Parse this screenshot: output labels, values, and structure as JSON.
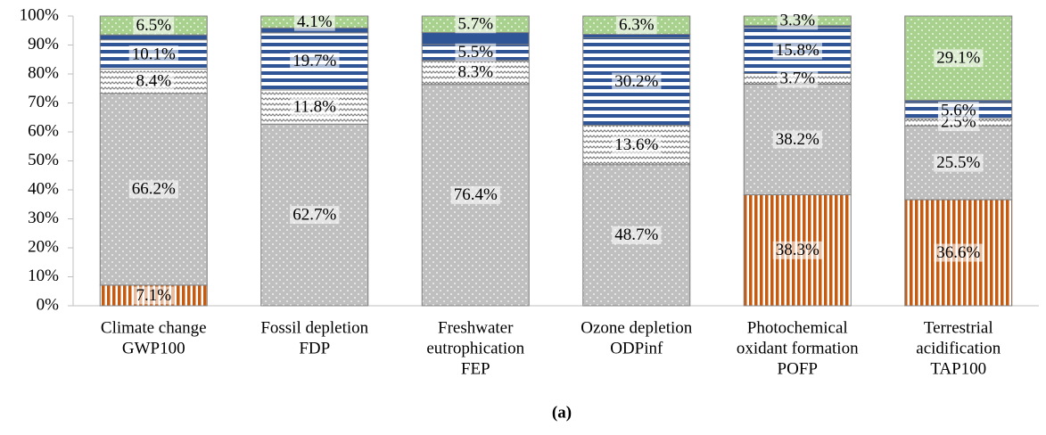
{
  "chart_data": {
    "type": "stacked_bar",
    "caption": "(a)",
    "categories": [
      [
        "Climate change",
        "GWP100"
      ],
      [
        "Fossil depletion",
        "FDP"
      ],
      [
        "Freshwater",
        "eutrophication",
        "FEP"
      ],
      [
        "Ozone depletion",
        "ODPinf"
      ],
      [
        "Photochemical",
        "oxidant formation",
        "POFP"
      ],
      [
        "Terrestrial",
        "acidification",
        "TAP100"
      ]
    ],
    "series": [
      {
        "color": "#c55a11",
        "pattern": "vertical",
        "values": [
          7.1,
          null,
          null,
          null,
          38.3,
          36.6
        ],
        "value_labels": [
          "7.1%",
          null,
          null,
          null,
          "38.3%",
          "36.6%"
        ]
      },
      {
        "color": "#bfbfbf",
        "pattern": "dots",
        "values": [
          66.2,
          62.7,
          76.4,
          48.7,
          38.2,
          25.5
        ],
        "value_labels": [
          "66.2%",
          "62.7%",
          "76.4%",
          "48.7%",
          "38.2%",
          "25.5%"
        ]
      },
      {
        "color": "#808080",
        "pattern": "zigzag",
        "values": [
          8.4,
          11.8,
          8.3,
          13.6,
          3.7,
          2.5
        ],
        "value_labels": [
          "8.4%",
          "11.8%",
          "8.3%",
          "13.6%",
          "3.7%",
          "2.5%"
        ]
      },
      {
        "color": "#2f5597",
        "pattern": "horizontal",
        "values": [
          10.1,
          19.7,
          5.5,
          30.2,
          15.8,
          5.6
        ],
        "value_labels": [
          "10.1%",
          "19.7%",
          "5.5%",
          "30.2%",
          "15.8%",
          "5.6%"
        ]
      },
      {
        "color": "#2f5597",
        "pattern": "solid",
        "values": [
          1.7,
          1.7,
          4.1,
          1.2,
          0.7,
          0.7
        ]
      },
      {
        "color": "#a9d18e",
        "pattern": "dots",
        "values": [
          6.5,
          4.1,
          5.7,
          6.3,
          3.3,
          29.1
        ],
        "value_labels": [
          "6.5%",
          "4.1%",
          "5.7%",
          "6.3%",
          "3.3%",
          "29.1%"
        ]
      }
    ],
    "ylim": [
      0,
      100
    ],
    "yticks": [
      {
        "value": 0,
        "label": "0%"
      },
      {
        "value": 10,
        "label": "10%"
      },
      {
        "value": 20,
        "label": "20%"
      },
      {
        "value": 30,
        "label": "30%"
      },
      {
        "value": 40,
        "label": "40%"
      },
      {
        "value": 50,
        "label": "50%"
      },
      {
        "value": 60,
        "label": "60%"
      },
      {
        "value": 70,
        "label": "70%"
      },
      {
        "value": 80,
        "label": "80%"
      },
      {
        "value": 90,
        "label": "90%"
      },
      {
        "value": 100,
        "label": "100%"
      }
    ]
  }
}
